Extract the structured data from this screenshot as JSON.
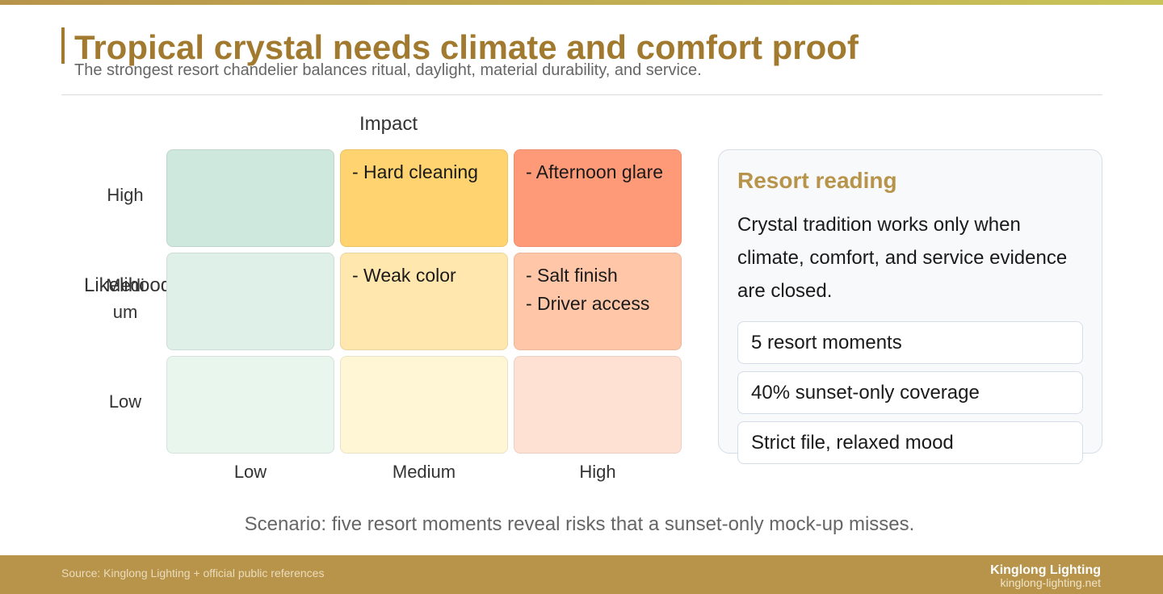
{
  "header": {
    "title": "Tropical crystal needs climate and comfort proof",
    "subtitle": "The strongest resort chandelier balances ritual, daylight, material durability, and service."
  },
  "matrix": {
    "x_axis_title": "Impact",
    "y_axis_title": "Likelihood",
    "rows": [
      "High",
      "Medium",
      "Low"
    ],
    "columns": [
      "Low",
      "Medium",
      "High"
    ],
    "cells": [
      [
        {
          "items": [],
          "color": "#cfe8de"
        },
        {
          "items": [
            "- Hard cleaning"
          ],
          "color": "#ffd36f"
        },
        {
          "items": [
            "- Afternoon glare"
          ],
          "color": "#ff9a78"
        }
      ],
      [
        {
          "items": [],
          "color": "#dff0e8"
        },
        {
          "items": [
            "- Weak color"
          ],
          "color": "#ffe7ad"
        },
        {
          "items": [
            "- Salt finish",
            "- Driver access"
          ],
          "color": "#ffc6a8"
        }
      ],
      [
        {
          "items": [],
          "color": "#e9f6ee"
        },
        {
          "items": [],
          "color": "#fff6d6"
        },
        {
          "items": [],
          "color": "#ffe1d4"
        }
      ]
    ]
  },
  "panel": {
    "title": "Resort reading",
    "body": "Crystal tradition works only when climate, comfort, and service evidence are closed.",
    "stats": [
      "5 resort moments",
      "40% sunset-only coverage",
      "Strict file, relaxed mood"
    ]
  },
  "scenario": "Scenario: five resort moments reveal risks that a sunset-only mock-up misses.",
  "footer": {
    "source": "Source: Kinglong Lighting + official public references",
    "brand": "Kinglong Lighting",
    "url": "kinglong-lighting.net"
  }
}
